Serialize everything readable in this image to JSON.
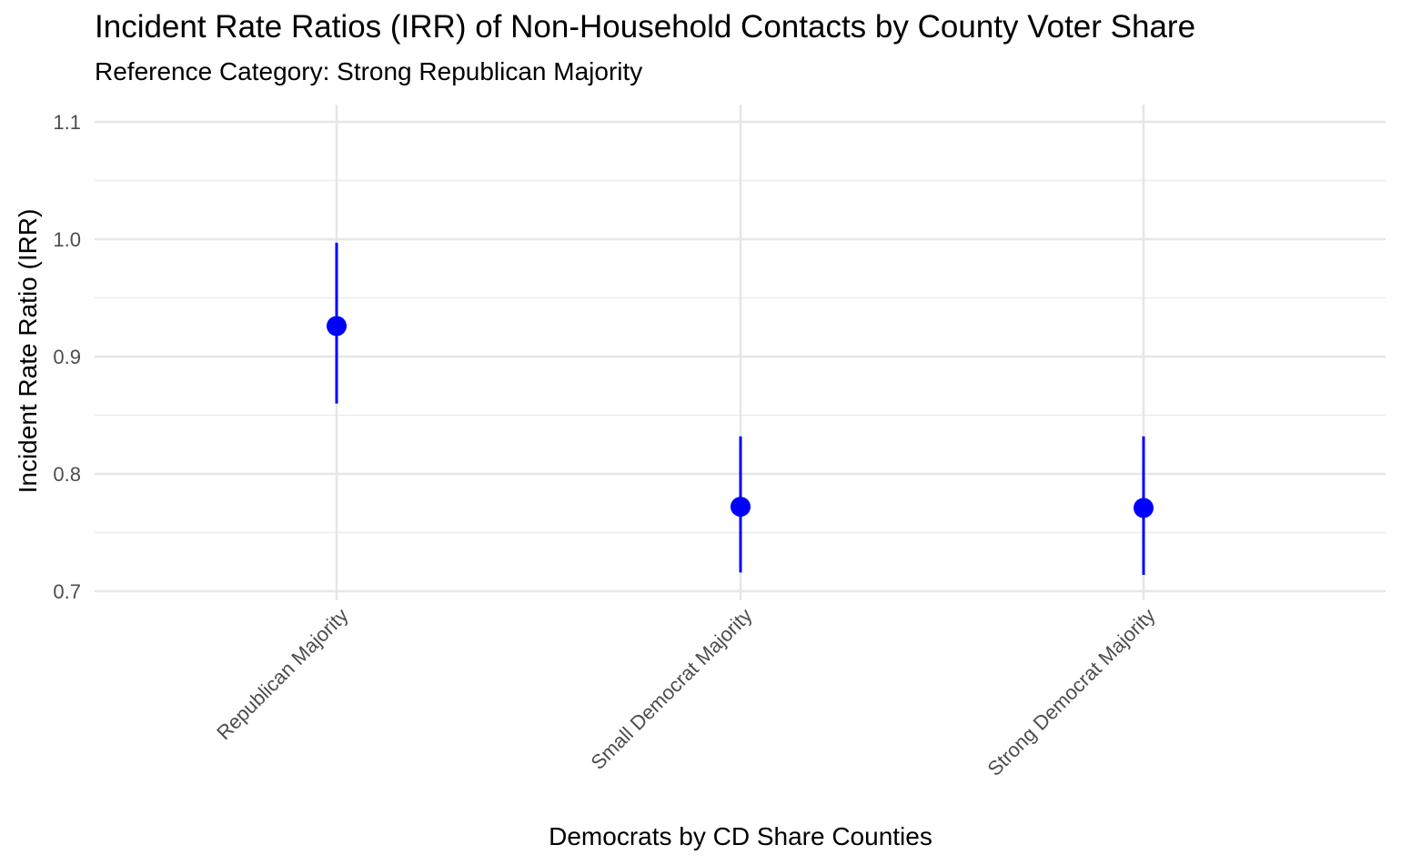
{
  "chart_data": {
    "type": "scatter",
    "title": "Incident Rate Ratios (IRR) of Non-Household Contacts by County Voter Share",
    "subtitle": "Reference Category: Strong Republican Majority",
    "xlabel": "Democrats by CD Share Counties",
    "ylabel": "Incident Rate Ratio (IRR)",
    "categories": [
      "Republican Majority",
      "Small Democrat Majority",
      "Strong Democrat Majority"
    ],
    "values": [
      0.926,
      0.772,
      0.771
    ],
    "ci_lower": [
      0.86,
      0.716,
      0.714
    ],
    "ci_upper": [
      0.997,
      0.832,
      0.832
    ],
    "ylim": [
      0.7,
      1.1
    ],
    "yticks": [
      "0.7",
      "0.8",
      "0.9",
      "1.0",
      "1.1"
    ],
    "grid": true,
    "colors": {
      "point": "#0000ff",
      "errorbar": "#0000ff",
      "grid": "#e6e6e6"
    }
  }
}
